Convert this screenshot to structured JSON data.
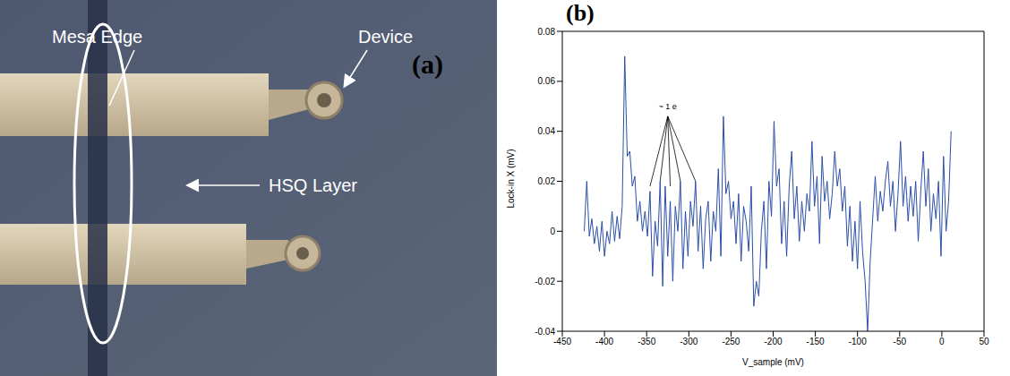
{
  "photo": {
    "panel_label": "(a)",
    "labels": {
      "mesa_edge": "Mesa Edge",
      "device": "Device",
      "hsq_layer": "HSQ Layer"
    }
  },
  "chart_data": {
    "type": "line",
    "panel_label": "(b)",
    "x_label": "V_sample (mV)",
    "y_label": "Lock-in X (mV)",
    "color": "#2b4fa8",
    "xlim": [
      -450,
      50
    ],
    "xticks": [
      -450,
      -400,
      -350,
      -300,
      -250,
      -200,
      -150,
      -100,
      -50,
      0,
      50
    ],
    "ylim": [
      -0.04,
      0.08
    ],
    "yticks": [
      -0.04,
      -0.02,
      0,
      0.02,
      0.04,
      0.06,
      0.08
    ],
    "annotations": [
      {
        "text": "~ 1 e",
        "x": -325,
        "y": 0.05,
        "arrows": [
          {
            "x": -346,
            "y": 0.018
          },
          {
            "x": -334,
            "y": 0.02
          },
          {
            "x": -322,
            "y": 0.018
          },
          {
            "x": -310,
            "y": 0.02
          },
          {
            "x": -292,
            "y": 0.02
          }
        ]
      }
    ],
    "x": [
      -424,
      -421,
      -418,
      -415,
      -412,
      -409,
      -406,
      -403,
      -400,
      -397,
      -394,
      -391,
      -388,
      -385,
      -382,
      -379,
      -376,
      -373,
      -370,
      -367,
      -364,
      -361,
      -358,
      -355,
      -352,
      -349,
      -346,
      -343,
      -340,
      -337,
      -334,
      -331,
      -328,
      -325,
      -322,
      -319,
      -316,
      -313,
      -310,
      -307,
      -304,
      -301,
      -298,
      -295,
      -292,
      -289,
      -286,
      -283,
      -280,
      -277,
      -274,
      -271,
      -268,
      -265,
      -262,
      -259,
      -256,
      -253,
      -250,
      -247,
      -244,
      -241,
      -238,
      -235,
      -232,
      -229,
      -226,
      -223,
      -220,
      -217,
      -214,
      -211,
      -208,
      -205,
      -202,
      -199,
      -196,
      -193,
      -190,
      -187,
      -184,
      -181,
      -178,
      -175,
      -172,
      -169,
      -166,
      -163,
      -160,
      -157,
      -154,
      -151,
      -148,
      -145,
      -142,
      -139,
      -136,
      -133,
      -130,
      -127,
      -124,
      -121,
      -118,
      -115,
      -112,
      -109,
      -106,
      -103,
      -100,
      -97,
      -94,
      -91,
      -88,
      -85,
      -82,
      -79,
      -76,
      -73,
      -70,
      -67,
      -64,
      -61,
      -58,
      -55,
      -52,
      -49,
      -46,
      -43,
      -40,
      -37,
      -34,
      -31,
      -28,
      -25,
      -22,
      -19,
      -16,
      -13,
      -10,
      -7,
      -4,
      -1,
      2,
      5,
      8,
      11
    ],
    "values": [
      0.0,
      0.02,
      -0.002,
      0.005,
      -0.005,
      0.002,
      -0.008,
      0.004,
      -0.01,
      0.0,
      -0.005,
      0.008,
      -0.004,
      0.006,
      -0.003,
      0.01,
      0.07,
      0.03,
      0.032,
      0.018,
      0.022,
      0.004,
      0.012,
      0.0,
      0.008,
      -0.002,
      0.016,
      -0.018,
      0.004,
      -0.006,
      0.02,
      -0.022,
      0.018,
      -0.01,
      0.012,
      -0.02,
      0.01,
      0.0,
      0.02,
      -0.015,
      0.008,
      -0.01,
      0.012,
      0.002,
      0.02,
      -0.008,
      0.01,
      -0.015,
      0.005,
      0.012,
      -0.012,
      0.008,
      0.0,
      0.025,
      -0.01,
      0.046,
      0.015,
      0.02,
      0.005,
      0.012,
      -0.005,
      0.015,
      -0.012,
      0.01,
      0.004,
      -0.008,
      0.018,
      -0.03,
      -0.02,
      -0.026,
      0.0,
      0.012,
      -0.015,
      0.02,
      0.006,
      0.044,
      0.018,
      0.025,
      -0.005,
      0.012,
      -0.01,
      0.018,
      0.032,
      0.005,
      0.018,
      -0.004,
      0.012,
      0.0,
      0.015,
      0.008,
      0.036,
      0.01,
      0.022,
      -0.005,
      0.03,
      0.012,
      0.02,
      0.005,
      0.015,
      0.032,
      0.018,
      0.025,
      0.008,
      0.018,
      -0.006,
      0.01,
      -0.012,
      0.004,
      -0.015,
      0.012,
      -0.008,
      -0.02,
      -0.04,
      -0.012,
      0.005,
      0.022,
      0.004,
      0.016,
      0.008,
      0.02,
      0.028,
      0.01,
      0.02,
      0.0,
      0.015,
      0.036,
      0.01,
      0.022,
      0.004,
      0.018,
      0.006,
      0.02,
      -0.004,
      0.016,
      0.032,
      0.01,
      0.025,
      0.0,
      0.015,
      0.005,
      0.02,
      -0.01,
      0.03,
      0.0,
      0.012,
      0.04
    ]
  }
}
